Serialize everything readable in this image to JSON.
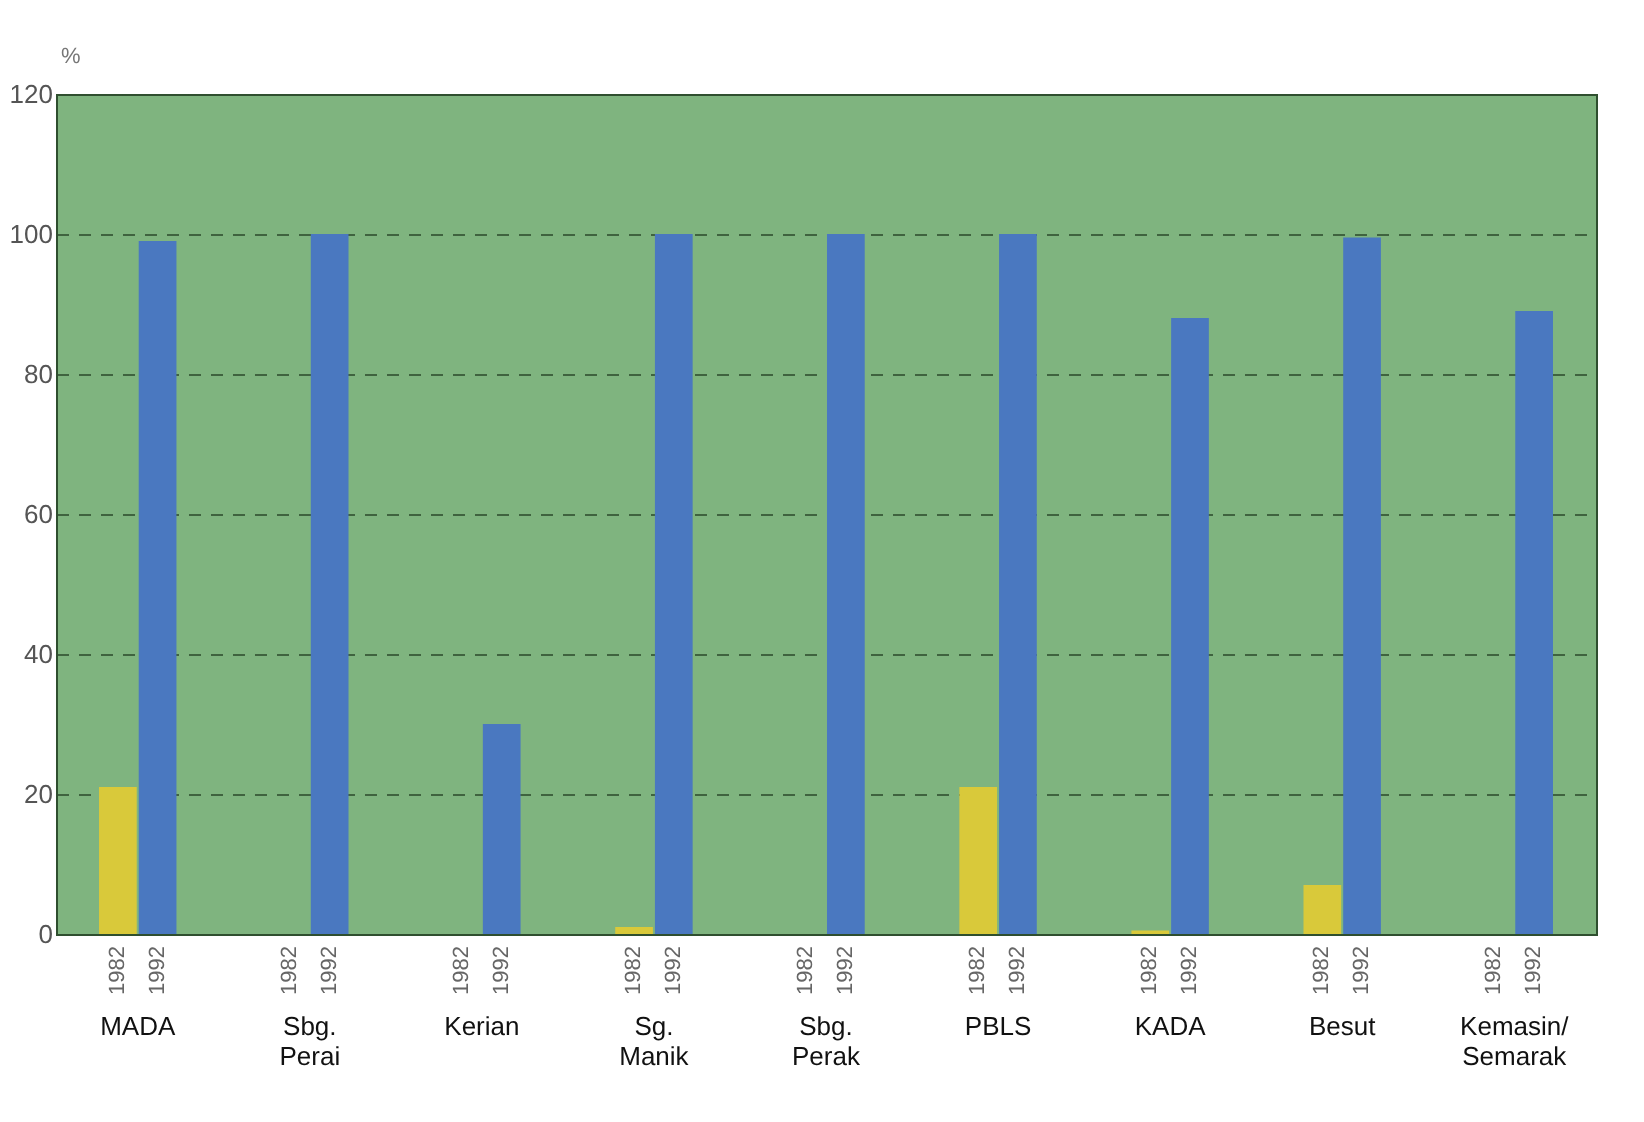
{
  "chart_data": {
    "type": "bar",
    "ylabel": "%",
    "categories": [
      "MADA",
      "Sbg. Perai",
      "Kerian",
      "Sg. Manik",
      "Sbg. Perak",
      "PBLS",
      "KADA",
      "Besut",
      "Kemasin/ Semarak"
    ],
    "series": [
      {
        "name": "1982",
        "color": "#d9c93a",
        "values": [
          21,
          0,
          0,
          1,
          0,
          21,
          0.5,
          7,
          0
        ]
      },
      {
        "name": "1992",
        "color": "#4a78c0",
        "values": [
          99,
          100,
          30,
          100,
          100,
          100,
          88,
          99.5,
          89
        ]
      }
    ],
    "ylim": [
      0,
      120
    ],
    "yticks": [
      0,
      20,
      40,
      60,
      80,
      100,
      120
    ],
    "grid": "y"
  }
}
